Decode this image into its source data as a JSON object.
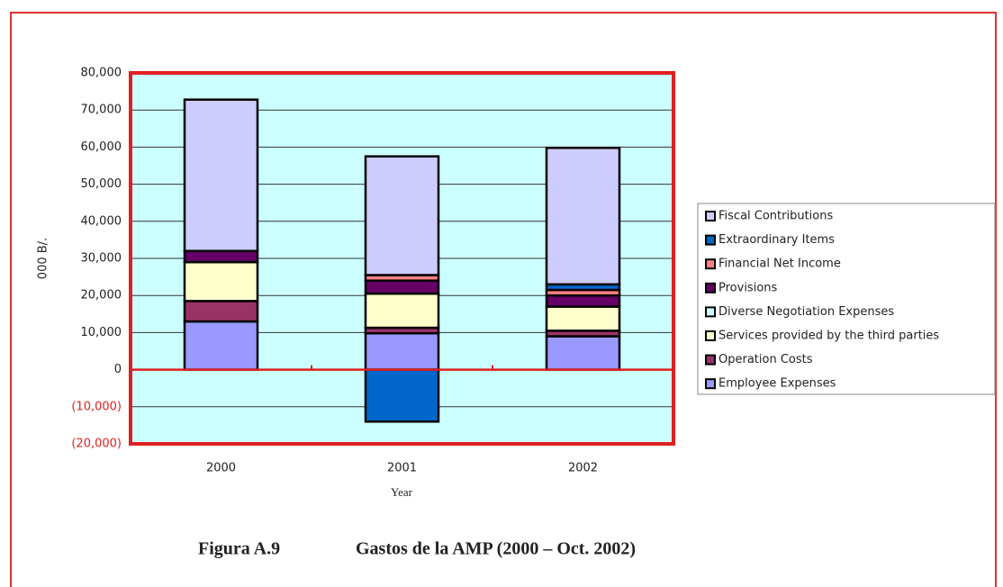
{
  "chart_data": {
    "type": "stacked_bar",
    "y_label": "000 B/.",
    "x_label": "Year",
    "caption_number": "Figura A.9",
    "caption": "Gastos de la AMP (2000 – Oct. 2002)",
    "categories": [
      "2000",
      "2001",
      "2002"
    ],
    "series": [
      {
        "name": "Employee Expenses",
        "color": "#9999ff",
        "values": [
          13000,
          9800,
          9000
        ]
      },
      {
        "name": "Operation Costs",
        "color": "#993366",
        "values": [
          5500,
          1500,
          1500
        ]
      },
      {
        "name": "Services provided by the third parties",
        "color": "#ffffcc",
        "values": [
          10500,
          9200,
          6500
        ]
      },
      {
        "name": "Diverse Negotiation Expenses",
        "color": "#ccffff",
        "values": [
          0,
          0,
          0
        ]
      },
      {
        "name": "Provisions",
        "color": "#660066",
        "values": [
          3000,
          3500,
          3000
        ]
      },
      {
        "name": "Financial Net Income",
        "color": "#ff8080",
        "values": [
          0,
          1500,
          1500
        ]
      },
      {
        "name": " Extraordinary Items",
        "color": "#0066cc",
        "values": [
          0,
          -14000,
          1500
        ]
      },
      {
        "name": "Fiscal Contributions",
        "color": "#ccccff",
        "values": [
          40800,
          32000,
          36800
        ]
      }
    ],
    "ylim": [
      -20000,
      80000
    ],
    "yticks": [
      {
        "value": -20000,
        "label": "(20,000)"
      },
      {
        "value": -10000,
        "label": "(10,000)"
      },
      0,
      {
        "value": 10000,
        "label": "10,000"
      },
      {
        "value": 20000,
        "label": "20,000"
      },
      {
        "value": 30000,
        "label": "30,000"
      },
      {
        "value": 40000,
        "label": "40,000"
      },
      {
        "value": 50000,
        "label": "50,000"
      },
      {
        "value": 60000,
        "label": "60,000"
      },
      {
        "value": 70000,
        "label": "70,000"
      },
      {
        "value": 80000,
        "label": "80,000"
      }
    ],
    "grid": true,
    "legend": "right"
  }
}
